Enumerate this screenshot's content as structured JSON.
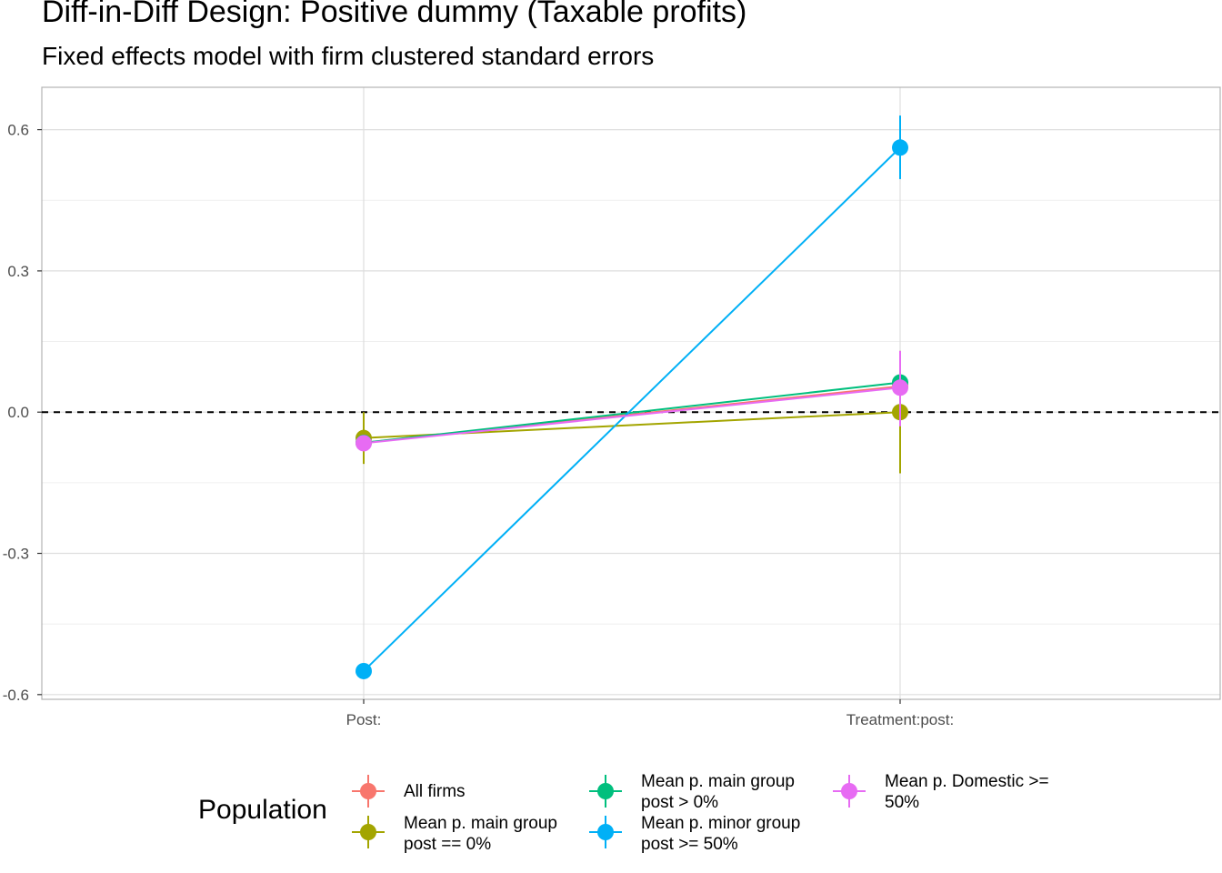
{
  "chart_data": {
    "type": "scatter",
    "title": "Diff-in-Diff Design: Positive dummy (Taxable profits)",
    "subtitle": "Fixed effects model with firm clustered standard errors",
    "xlabel": "",
    "ylabel": "",
    "categories": [
      "Post:",
      "Treatment:post:"
    ],
    "ylim": [
      -0.61,
      0.69
    ],
    "yticks": [
      -0.6,
      -0.3,
      0.0,
      0.3,
      0.6
    ],
    "ytick_labels": [
      "-0.6",
      "-0.3",
      "0.0",
      "0.3",
      "0.6"
    ],
    "reference_line": {
      "y": 0,
      "style": "dashed"
    },
    "grid": true,
    "legend": {
      "title": "Population",
      "position": "bottom"
    },
    "series": [
      {
        "name": "All firms",
        "color": "#F8766D",
        "values": [
          -0.065,
          0.055
        ],
        "lower": [
          -0.075,
          0.045
        ],
        "upper": [
          -0.055,
          0.065
        ]
      },
      {
        "name": "Mean p. main group\npost == 0%",
        "color": "#A3A500",
        "values": [
          -0.055,
          0.0
        ],
        "lower": [
          -0.11,
          -0.13
        ],
        "upper": [
          0.0,
          0.13
        ]
      },
      {
        "name": "Mean p. main group\npost > 0%",
        "color": "#00BF7D",
        "values": [
          -0.065,
          0.063
        ],
        "lower": [
          -0.075,
          0.05
        ],
        "upper": [
          -0.055,
          0.076
        ]
      },
      {
        "name": "Mean p. minor group\npost >= 50%",
        "color": "#00B0F6",
        "values": [
          -0.55,
          0.562
        ],
        "lower": [
          -0.56,
          0.495
        ],
        "upper": [
          -0.54,
          0.63
        ]
      },
      {
        "name": "Mean p. Domestic >=\n50%",
        "color": "#E76BF3",
        "values": [
          -0.066,
          0.052
        ],
        "lower": [
          -0.076,
          -0.03
        ],
        "upper": [
          -0.056,
          0.13
        ]
      }
    ]
  }
}
